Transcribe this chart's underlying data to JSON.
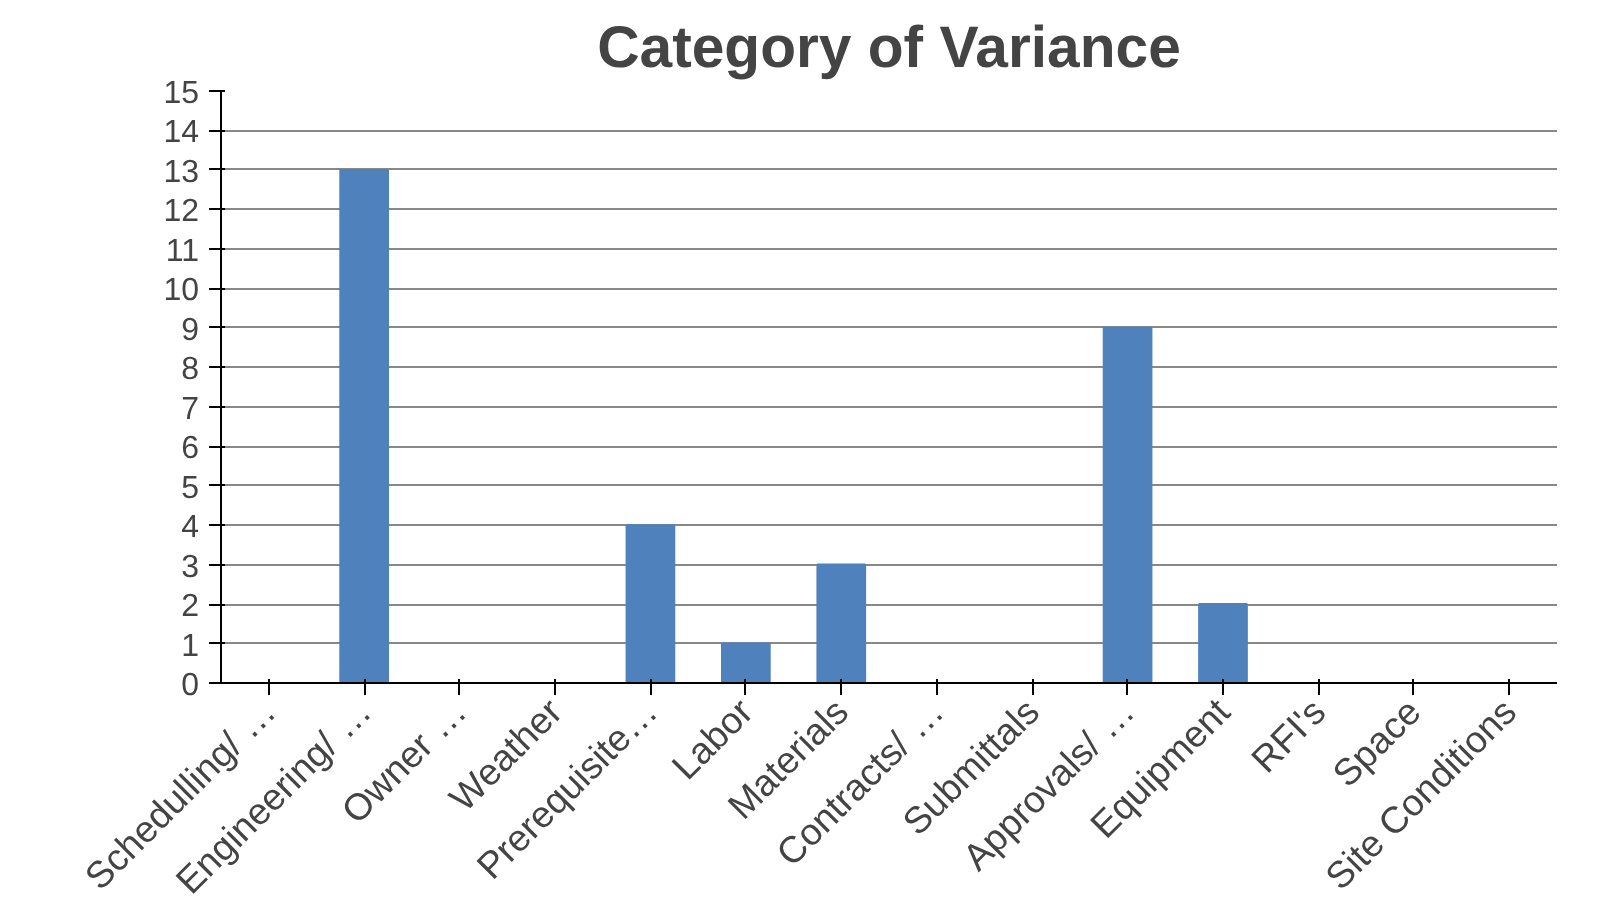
{
  "chart_data": {
    "type": "bar",
    "title": "Category of Variance",
    "categories": [
      "Schedulling/ …",
      "Engineering/ …",
      "Owner …",
      "Weather",
      "Prerequisite…",
      "Labor",
      "Materials",
      "Contracts/ …",
      "Submittals",
      "Approvals/ …",
      "Equipment",
      "RFI's",
      "Space",
      "Site Conditions"
    ],
    "values": [
      0,
      13,
      0,
      0,
      4,
      1,
      3,
      0,
      0,
      9,
      2,
      0,
      0,
      0
    ],
    "color": "#4f81bd",
    "ylim": [
      0,
      15
    ],
    "yticks": [
      0,
      1,
      2,
      3,
      4,
      5,
      6,
      7,
      8,
      9,
      10,
      11,
      12,
      13,
      14,
      15
    ],
    "grid": "y"
  }
}
